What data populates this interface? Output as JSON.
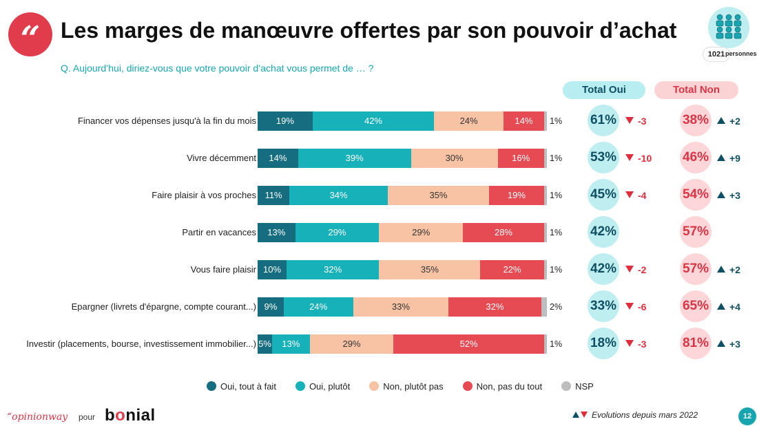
{
  "header": {
    "title": "Les marges de manœuvre offertes par son pouvoir d’achat",
    "question": "Q. Aujourd’hui, diriez-vous que votre pouvoir d’achat vous permet de … ?",
    "quote_icon": "quote-icon",
    "sample_icon": "people-group-icon",
    "sample_count": "1021",
    "sample_label": "personnes"
  },
  "columns": {
    "total_oui": "Total Oui",
    "total_non": "Total Non"
  },
  "colors": {
    "oui_tout_a_fait": "#166d80",
    "oui_plutot": "#17b1b9",
    "non_plutot_pas": "#f7c3a4",
    "non_pas_du_tout": "#e64b54",
    "nsp": "#bdbdbd",
    "total_oui_text": "#0f4f63",
    "total_non_text": "#d93545"
  },
  "chart_data": {
    "type": "bar",
    "orientation": "horizontal",
    "stacked": true,
    "categories": [
      "Financer vos dépenses jusqu'à la fin du mois",
      "Vivre décemment",
      "Faire plaisir à vos proches",
      "Partir en vacances",
      "Vous faire plaisir",
      "Epargner (livrets d'épargne, compte courant...)",
      "Investir (placements, bourse, investissement immobilier...)"
    ],
    "series": [
      {
        "name": "Oui, tout à fait",
        "values": [
          19,
          14,
          11,
          13,
          10,
          9,
          5
        ],
        "labels": [
          "19%",
          "14%",
          "11%",
          "13%",
          "10%",
          "9%",
          "5%"
        ]
      },
      {
        "name": "Oui, plutôt",
        "values": [
          42,
          39,
          34,
          29,
          32,
          24,
          13
        ],
        "labels": [
          "42%",
          "39%",
          "34%",
          "29%",
          "32%",
          "24%",
          "13%"
        ]
      },
      {
        "name": "Non, plutôt pas",
        "values": [
          24,
          30,
          35,
          29,
          35,
          33,
          29
        ],
        "labels": [
          "24%",
          "30%",
          "35%",
          "29%",
          "35%",
          "33%",
          "29%"
        ]
      },
      {
        "name": "Non, pas du tout",
        "values": [
          14,
          16,
          19,
          28,
          22,
          32,
          52
        ],
        "labels": [
          "14%",
          "16%",
          "19%",
          "28%",
          "22%",
          "32%",
          "52%"
        ]
      },
      {
        "name": "NSP",
        "values": [
          1,
          1,
          1,
          1,
          1,
          2,
          1
        ],
        "labels": [
          "1%",
          "1%",
          "1%",
          "1%",
          "1%",
          "2%",
          "1%"
        ]
      }
    ],
    "total_oui": [
      "61%",
      "53%",
      "45%",
      "42%",
      "42%",
      "33%",
      "18%"
    ],
    "total_non": [
      "38%",
      "46%",
      "54%",
      "57%",
      "57%",
      "65%",
      "81%"
    ],
    "evolution_oui": [
      "-3",
      "-10",
      "-4",
      "",
      "-2",
      "-6",
      "-3"
    ],
    "evolution_non": [
      "+2",
      "+9",
      "+3",
      "",
      "+2",
      "+4",
      "+3"
    ],
    "legend_position": "bottom"
  },
  "footer": {
    "logo_text": "“opinionway",
    "pour": "pour",
    "brand": "bonial",
    "evolutions_note": "Evolutions depuis mars 2022",
    "page_number": "12"
  }
}
